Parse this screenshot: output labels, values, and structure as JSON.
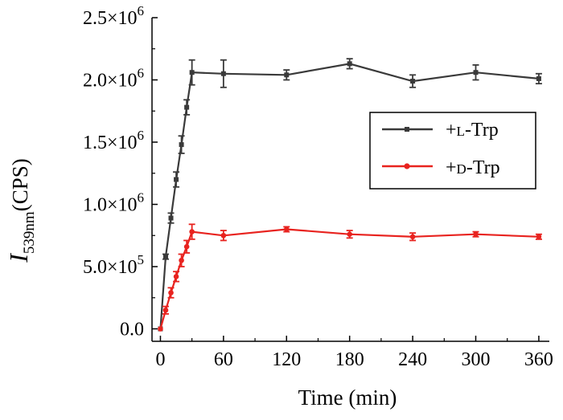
{
  "chart_data": {
    "type": "line",
    "xlabel": "Time (min)",
    "ylabel": {
      "italic": "I",
      "sub": "539nm",
      "rest": "(CPS)"
    },
    "xlim": [
      -8,
      370
    ],
    "ylim": [
      -100000,
      2500000
    ],
    "x_ticks": [
      0,
      60,
      120,
      180,
      240,
      300,
      360
    ],
    "x_tick_labels": [
      "0",
      "60",
      "120",
      "180",
      "240",
      "300",
      "360"
    ],
    "y_ticks": [
      {
        "value": 0,
        "mantissa": "0.0",
        "exp": ""
      },
      {
        "value": 500000,
        "mantissa": "5.0×10",
        "exp": "5"
      },
      {
        "value": 1000000,
        "mantissa": "1.0×10",
        "exp": "6"
      },
      {
        "value": 1500000,
        "mantissa": "1.5×10",
        "exp": "6"
      },
      {
        "value": 2000000,
        "mantissa": "2.0×10",
        "exp": "6"
      },
      {
        "value": 2500000,
        "mantissa": "2.5×10",
        "exp": "6"
      }
    ],
    "legend_position": "right",
    "series": [
      {
        "name": "L-Trp",
        "legend_prefix": "+",
        "legend_small": "L",
        "legend_rest": "-Trp",
        "color": "#3a3a3a",
        "marker": "square",
        "x": [
          0,
          5,
          10,
          15,
          20,
          25,
          30,
          60,
          120,
          180,
          240,
          300,
          360
        ],
        "y": [
          0,
          580000,
          890000,
          1200000,
          1480000,
          1780000,
          2060000,
          2050000,
          2040000,
          2130000,
          1990000,
          2060000,
          2010000
        ],
        "err": [
          0,
          20000,
          40000,
          60000,
          70000,
          60000,
          100000,
          110000,
          40000,
          40000,
          50000,
          60000,
          40000
        ]
      },
      {
        "name": "D-Trp",
        "legend_prefix": "+",
        "legend_small": "D",
        "legend_rest": "-Trp",
        "color": "#e8231f",
        "marker": "circle",
        "x": [
          0,
          5,
          10,
          15,
          20,
          25,
          30,
          60,
          120,
          180,
          240,
          300,
          360
        ],
        "y": [
          0,
          150000,
          290000,
          420000,
          550000,
          660000,
          780000,
          750000,
          800000,
          760000,
          740000,
          760000,
          740000
        ],
        "err": [
          0,
          30000,
          40000,
          40000,
          50000,
          50000,
          60000,
          40000,
          20000,
          30000,
          30000,
          20000,
          20000
        ]
      }
    ]
  }
}
